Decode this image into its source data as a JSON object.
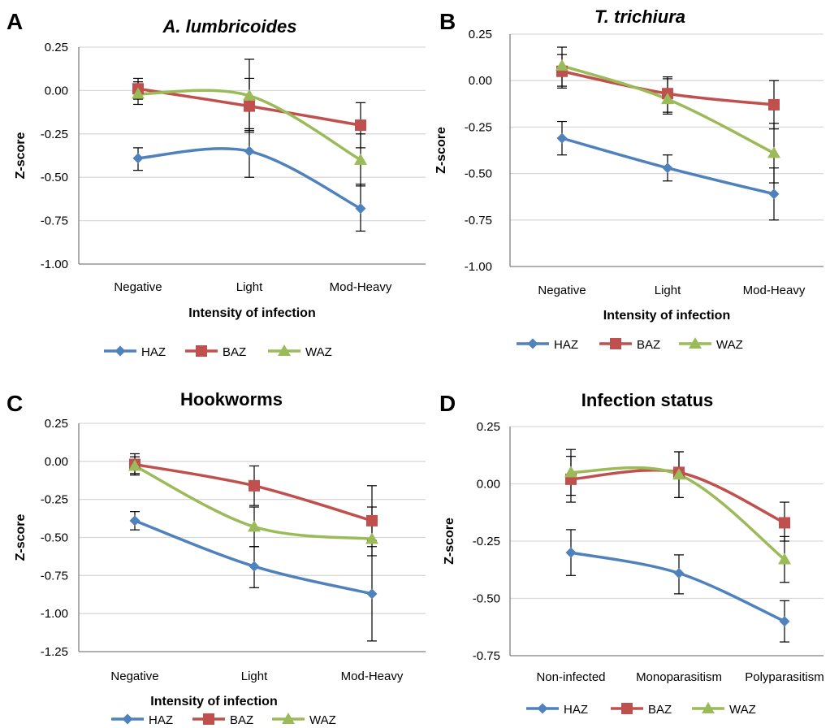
{
  "figure": {
    "colors": {
      "HAZ": "#4F81BD",
      "BAZ": "#C0504D",
      "WAZ": "#9BBB59"
    },
    "markers": {
      "HAZ": "diamond",
      "BAZ": "square",
      "WAZ": "triangle"
    }
  },
  "chart_data": [
    {
      "type": "line",
      "panel": "A",
      "title": "A. lumbricoides",
      "title_italic": true,
      "xlabel": "Intensity of infection",
      "ylabel": "Z-score",
      "categories": [
        "Negative",
        "Light",
        "Mod-Heavy"
      ],
      "ylim": [
        -1.0,
        0.25
      ],
      "yticks": [
        0.25,
        0.0,
        -0.25,
        -0.5,
        -0.75,
        -1.0
      ],
      "ytick_labels": [
        "0.25",
        "0.00",
        "-0.25",
        "-0.50",
        "-0.75",
        "-1.00"
      ],
      "grid": "horizontal",
      "legend_position": "bottom",
      "series": [
        {
          "name": "HAZ",
          "values": [
            -0.39,
            -0.35,
            -0.68
          ],
          "err_low": [
            -0.46,
            -0.5,
            -0.81
          ],
          "err_high": [
            -0.33,
            -0.22,
            -0.54
          ]
        },
        {
          "name": "BAZ",
          "values": [
            0.01,
            -0.09,
            -0.2
          ],
          "err_low": [
            -0.05,
            -0.23,
            -0.33
          ],
          "err_high": [
            0.07,
            0.07,
            -0.07
          ]
        },
        {
          "name": "WAZ",
          "values": [
            -0.02,
            -0.03,
            -0.4
          ],
          "err_low": [
            -0.08,
            -0.24,
            -0.55
          ],
          "err_high": [
            0.05,
            0.18,
            -0.25
          ]
        }
      ]
    },
    {
      "type": "line",
      "panel": "B",
      "title": "T. trichiura",
      "title_italic": true,
      "xlabel": "Intensity of infection",
      "ylabel": "Z-score",
      "categories": [
        "Negative",
        "Light",
        "Mod-Heavy"
      ],
      "ylim": [
        -1.0,
        0.25
      ],
      "yticks": [
        0.25,
        0.0,
        -0.25,
        -0.5,
        -0.75,
        -1.0
      ],
      "ytick_labels": [
        "0.25",
        "0.00",
        "-0.25",
        "-0.50",
        "-0.75",
        "-1.00"
      ],
      "grid": "horizontal",
      "legend_position": "bottom",
      "series": [
        {
          "name": "HAZ",
          "values": [
            -0.31,
            -0.47,
            -0.61
          ],
          "err_low": [
            -0.4,
            -0.54,
            -0.75
          ],
          "err_high": [
            -0.22,
            -0.4,
            -0.47
          ]
        },
        {
          "name": "BAZ",
          "values": [
            0.05,
            -0.07,
            -0.13
          ],
          "err_low": [
            -0.04,
            -0.17,
            -0.26
          ],
          "err_high": [
            0.14,
            0.02,
            0.0
          ]
        },
        {
          "name": "WAZ",
          "values": [
            0.08,
            -0.1,
            -0.39
          ],
          "err_low": [
            -0.03,
            -0.18,
            -0.55
          ],
          "err_high": [
            0.18,
            0.01,
            -0.23
          ]
        }
      ]
    },
    {
      "type": "line",
      "panel": "C",
      "title": "Hookworms",
      "title_italic": false,
      "xlabel": "Intensity of infection",
      "ylabel": "Z-score",
      "categories": [
        "Negative",
        "Light",
        "Mod-Heavy"
      ],
      "ylim": [
        -1.25,
        0.25
      ],
      "yticks": [
        0.25,
        0.0,
        -0.25,
        -0.5,
        -0.75,
        -1.0,
        -1.25
      ],
      "ytick_labels": [
        "0.25",
        "0.00",
        "-0.25",
        "-0.50",
        "-0.75",
        "-1.00",
        "-1.25"
      ],
      "grid": "horizontal",
      "legend_position": "bottom",
      "series": [
        {
          "name": "HAZ",
          "values": [
            -0.39,
            -0.69,
            -0.87
          ],
          "err_low": [
            -0.45,
            -0.83,
            -1.18
          ],
          "err_high": [
            -0.33,
            -0.56,
            -0.56
          ]
        },
        {
          "name": "BAZ",
          "values": [
            -0.02,
            -0.16,
            -0.39
          ],
          "err_low": [
            -0.09,
            -0.29,
            -0.52
          ],
          "err_high": [
            0.05,
            -0.03,
            -0.16
          ]
        },
        {
          "name": "WAZ",
          "values": [
            -0.03,
            -0.43,
            -0.51
          ],
          "err_low": [
            -0.08,
            -0.56,
            -0.62
          ],
          "err_high": [
            0.03,
            -0.3,
            -0.3
          ]
        }
      ]
    },
    {
      "type": "line",
      "panel": "D",
      "title": "Infection status",
      "title_italic": false,
      "xlabel": "",
      "ylabel": "Z-score",
      "categories": [
        "Non-infected",
        "Monoparasitism",
        "Polyparasitism"
      ],
      "ylim": [
        -0.75,
        0.25
      ],
      "yticks": [
        0.25,
        0.0,
        -0.25,
        -0.5,
        -0.75
      ],
      "ytick_labels": [
        "0.25",
        "0.00",
        "-0.25",
        "-0.50",
        "-0.75"
      ],
      "grid": "horizontal",
      "legend_position": "bottom",
      "series": [
        {
          "name": "HAZ",
          "values": [
            -0.3,
            -0.39,
            -0.6
          ],
          "err_low": [
            -0.4,
            -0.48,
            -0.69
          ],
          "err_high": [
            -0.2,
            -0.31,
            -0.51
          ]
        },
        {
          "name": "BAZ",
          "values": [
            0.02,
            0.05,
            -0.17
          ],
          "err_low": [
            -0.08,
            -0.06,
            -0.25
          ],
          "err_high": [
            0.12,
            0.14,
            -0.08
          ]
        },
        {
          "name": "WAZ",
          "values": [
            0.05,
            0.04,
            -0.33
          ],
          "err_low": [
            -0.05,
            -0.06,
            -0.43
          ],
          "err_high": [
            0.15,
            0.14,
            -0.23
          ]
        }
      ]
    }
  ]
}
